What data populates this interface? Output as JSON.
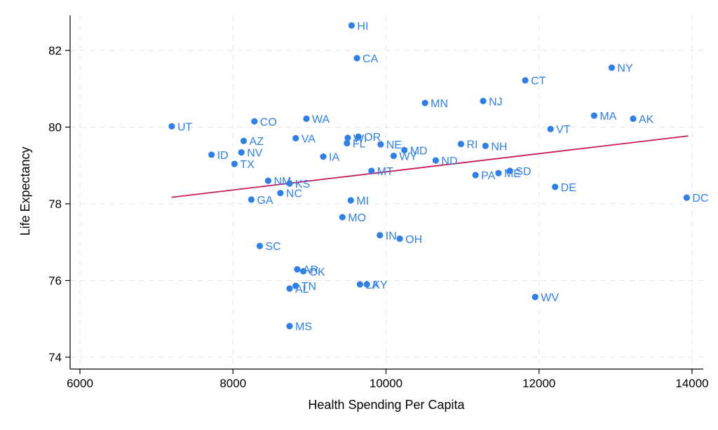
{
  "chart_data": {
    "type": "scatter",
    "xlabel": "Health Spending Per Capita",
    "ylabel": "Life Expectancy",
    "xlim": [
      6000,
      14000
    ],
    "ylim": [
      74,
      82.8
    ],
    "xticks": [
      6000,
      8000,
      10000,
      12000,
      14000
    ],
    "yticks": [
      74,
      76,
      78,
      80,
      82
    ],
    "grid": true,
    "colors": {
      "points": "#2f7fea",
      "fit_line": "#c8195c"
    },
    "fit_line": {
      "x": [
        7200,
        13950
      ],
      "y": [
        78.17,
        79.77
      ]
    },
    "points": [
      {
        "label": "HI",
        "x": 9550,
        "y": 82.65
      },
      {
        "label": "CA",
        "x": 9620,
        "y": 81.8
      },
      {
        "label": "NY",
        "x": 12950,
        "y": 81.55
      },
      {
        "label": "CT",
        "x": 11820,
        "y": 81.22
      },
      {
        "label": "NJ",
        "x": 11270,
        "y": 80.68
      },
      {
        "label": "MN",
        "x": 10510,
        "y": 80.63
      },
      {
        "label": "MA",
        "x": 12720,
        "y": 80.3
      },
      {
        "label": "AK",
        "x": 13230,
        "y": 80.22
      },
      {
        "label": "WA",
        "x": 8960,
        "y": 80.22
      },
      {
        "label": "CO",
        "x": 8280,
        "y": 80.15
      },
      {
        "label": "UT",
        "x": 7200,
        "y": 80.02
      },
      {
        "label": "VT",
        "x": 12150,
        "y": 79.95
      },
      {
        "label": "OR",
        "x": 9640,
        "y": 79.75
      },
      {
        "label": "VA",
        "x": 8820,
        "y": 79.71
      },
      {
        "label": "AZ",
        "x": 8140,
        "y": 79.64
      },
      {
        "label": "RI",
        "x": 10980,
        "y": 79.56
      },
      {
        "label": "NE",
        "x": 9930,
        "y": 79.55
      },
      {
        "label": "FL",
        "x": 9490,
        "y": 79.58
      },
      {
        "label": "WI",
        "x": 9500,
        "y": 79.72
      },
      {
        "label": "NH",
        "x": 11300,
        "y": 79.51
      },
      {
        "label": "MD",
        "x": 10240,
        "y": 79.4
      },
      {
        "label": "NV",
        "x": 8110,
        "y": 79.34
      },
      {
        "label": "ID",
        "x": 7720,
        "y": 79.28
      },
      {
        "label": "WY",
        "x": 10100,
        "y": 79.25
      },
      {
        "label": "IA",
        "x": 9180,
        "y": 79.23
      },
      {
        "label": "ND",
        "x": 10650,
        "y": 79.13
      },
      {
        "label": "TX",
        "x": 8020,
        "y": 79.04
      },
      {
        "label": "MT",
        "x": 9810,
        "y": 78.86
      },
      {
        "label": "SD",
        "x": 11620,
        "y": 78.86
      },
      {
        "label": "ME",
        "x": 11470,
        "y": 78.8
      },
      {
        "label": "PA",
        "x": 11170,
        "y": 78.75
      },
      {
        "label": "NM",
        "x": 8460,
        "y": 78.6
      },
      {
        "label": "KS",
        "x": 8740,
        "y": 78.53
      },
      {
        "label": "DE",
        "x": 12210,
        "y": 78.44
      },
      {
        "label": "NC",
        "x": 8620,
        "y": 78.28
      },
      {
        "label": "DC",
        "x": 13930,
        "y": 78.16
      },
      {
        "label": "GA",
        "x": 8240,
        "y": 78.11
      },
      {
        "label": "MI",
        "x": 9540,
        "y": 78.09
      },
      {
        "label": "MO",
        "x": 9430,
        "y": 77.65
      },
      {
        "label": "IN",
        "x": 9920,
        "y": 77.18
      },
      {
        "label": "OH",
        "x": 10180,
        "y": 77.09
      },
      {
        "label": "SC",
        "x": 8350,
        "y": 76.9
      },
      {
        "label": "AR",
        "x": 8840,
        "y": 76.29
      },
      {
        "label": "OK",
        "x": 8920,
        "y": 76.24
      },
      {
        "label": "TN",
        "x": 8820,
        "y": 75.86
      },
      {
        "label": "LA",
        "x": 9660,
        "y": 75.9
      },
      {
        "label": "KY",
        "x": 9750,
        "y": 75.9
      },
      {
        "label": "AL",
        "x": 8740,
        "y": 75.79
      },
      {
        "label": "WV",
        "x": 11950,
        "y": 75.57
      },
      {
        "label": "MS",
        "x": 8740,
        "y": 74.81
      }
    ]
  }
}
